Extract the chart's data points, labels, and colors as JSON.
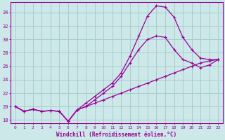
{
  "xlabel": "Windchill (Refroidissement éolien,°C)",
  "background_color": "#cce8e8",
  "grid_color": "#aacccc",
  "line_color": "#990099",
  "xlim": [
    -0.5,
    23.5
  ],
  "ylim": [
    17.5,
    35.5
  ],
  "xticks": [
    0,
    1,
    2,
    3,
    4,
    5,
    6,
    7,
    8,
    9,
    10,
    11,
    12,
    13,
    14,
    15,
    16,
    17,
    18,
    19,
    20,
    21,
    22,
    23
  ],
  "yticks": [
    18,
    20,
    22,
    24,
    26,
    28,
    30,
    32,
    34
  ],
  "line1_x": [
    0,
    1,
    2,
    3,
    4,
    5,
    6,
    7,
    8,
    9,
    10,
    11,
    12,
    13,
    14,
    15,
    16,
    17,
    18,
    19,
    20,
    21,
    22,
    23
  ],
  "line1_y": [
    20.0,
    19.3,
    19.6,
    19.3,
    19.4,
    19.3,
    17.8,
    19.5,
    20.5,
    21.5,
    22.5,
    23.5,
    25.0,
    27.5,
    30.5,
    33.5,
    35.0,
    34.8,
    33.3,
    30.3,
    28.5,
    27.2,
    27.0,
    27.0
  ],
  "line2_x": [
    0,
    1,
    2,
    3,
    4,
    5,
    6,
    7,
    8,
    9,
    10,
    11,
    12,
    13,
    14,
    15,
    16,
    17,
    18,
    19,
    20,
    21,
    22,
    23
  ],
  "line2_y": [
    20.0,
    19.3,
    19.6,
    19.3,
    19.4,
    19.3,
    17.8,
    19.5,
    20.0,
    21.0,
    22.0,
    23.0,
    24.5,
    26.5,
    28.5,
    30.0,
    30.5,
    30.3,
    28.5,
    27.0,
    26.5,
    25.8,
    26.2,
    27.0
  ],
  "line3_x": [
    0,
    1,
    2,
    3,
    4,
    5,
    6,
    7,
    8,
    9,
    10,
    11,
    12,
    13,
    14,
    15,
    16,
    17,
    18,
    19,
    20,
    21,
    22,
    23
  ],
  "line3_y": [
    20.0,
    19.3,
    19.6,
    19.3,
    19.4,
    19.3,
    17.8,
    19.5,
    20.0,
    20.5,
    21.0,
    21.5,
    22.0,
    22.5,
    23.0,
    23.5,
    24.0,
    24.5,
    25.0,
    25.5,
    26.0,
    26.5,
    26.8,
    27.0
  ]
}
